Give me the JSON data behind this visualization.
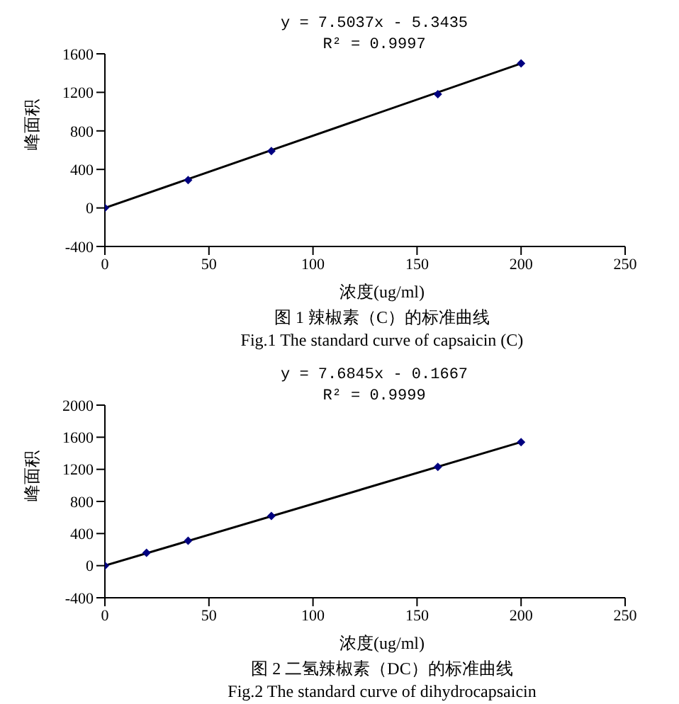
{
  "chart_data": [
    {
      "type": "scatter",
      "title": "图 1  辣椒素（C）的标准曲线",
      "subtitle": "Fig.1  The standard curve of capsaicin (C)",
      "xlabel": "浓度(ug/ml)",
      "ylabel": "峰面积",
      "annotations": [
        "y = 7.5037x - 5.3435",
        "R² = 0.9997"
      ],
      "xlim": [
        0,
        250
      ],
      "xticks": [
        0,
        50,
        100,
        150,
        200,
        250
      ],
      "ylim": [
        -400,
        1600
      ],
      "yticks": [
        -400,
        0,
        400,
        800,
        1200,
        1600
      ],
      "series": [
        {
          "color": "#000080",
          "marker": "diamond",
          "x": [
            0,
            40,
            80,
            160,
            200
          ],
          "values": [
            0,
            290,
            590,
            1180,
            1500
          ]
        },
        {
          "type": "line",
          "color": "#000000",
          "marker": "none",
          "line_style": "solid",
          "x": [
            0,
            200
          ],
          "values": [
            0,
            1500
          ]
        }
      ]
    },
    {
      "type": "scatter",
      "title": "图 2  二氢辣椒素（DC）的标准曲线",
      "subtitle": "Fig.2 The standard curve of dihydrocapsaicin",
      "xlabel": "浓度(ug/ml)",
      "ylabel": "峰面积",
      "annotations": [
        "y = 7.6845x - 0.1667",
        "R² = 0.9999"
      ],
      "xlim": [
        0,
        250
      ],
      "xticks": [
        0,
        50,
        100,
        150,
        200,
        250
      ],
      "ylim": [
        -400,
        2000
      ],
      "yticks": [
        -400,
        0,
        400,
        800,
        1200,
        1600,
        2000
      ],
      "series": [
        {
          "color": "#000080",
          "marker": "diamond",
          "x": [
            0,
            20,
            40,
            80,
            160,
            200
          ],
          "values": [
            0,
            160,
            310,
            620,
            1230,
            1540
          ]
        },
        {
          "type": "line",
          "color": "#000000",
          "marker": "none",
          "line_style": "solid",
          "x": [
            0,
            200
          ],
          "values": [
            0,
            1540
          ]
        }
      ]
    }
  ]
}
